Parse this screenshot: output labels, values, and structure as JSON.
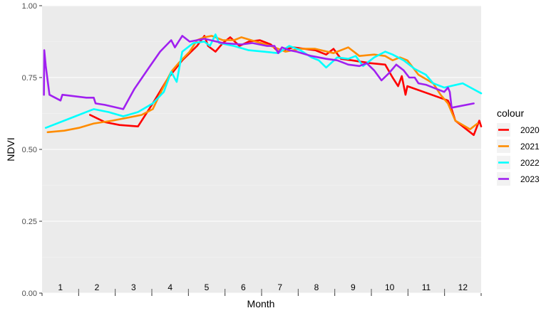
{
  "chart_data": {
    "type": "line",
    "xlabel": "Month",
    "ylabel": "NDVI",
    "legend_title": "colour",
    "legend_position": "right",
    "grid": true,
    "xlim": [
      0.6,
      12.5
    ],
    "ylim": [
      0,
      1
    ],
    "y_ticks": [
      0.0,
      0.25,
      0.5,
      0.75,
      1.0
    ],
    "y_tick_labels": [
      "0.00",
      "0.25",
      "0.50",
      "0.75",
      "1.00"
    ],
    "month_labels": [
      "1",
      "2",
      "3",
      "4",
      "5",
      "6",
      "7",
      "8",
      "9",
      "10",
      "11",
      "12"
    ],
    "series": [
      {
        "name": "2020",
        "color": "#ff0000",
        "points": [
          [
            1.9,
            0.62
          ],
          [
            2.3,
            0.595
          ],
          [
            2.7,
            0.585
          ],
          [
            3.2,
            0.58
          ],
          [
            3.6,
            0.66
          ],
          [
            4.0,
            0.745
          ],
          [
            4.4,
            0.81
          ],
          [
            4.8,
            0.86
          ],
          [
            5.0,
            0.895
          ],
          [
            5.1,
            0.86
          ],
          [
            5.3,
            0.84
          ],
          [
            5.5,
            0.87
          ],
          [
            5.7,
            0.89
          ],
          [
            5.95,
            0.86
          ],
          [
            6.2,
            0.875
          ],
          [
            6.5,
            0.88
          ],
          [
            6.8,
            0.865
          ],
          [
            7.0,
            0.84
          ],
          [
            7.4,
            0.855
          ],
          [
            7.7,
            0.85
          ],
          [
            8.0,
            0.845
          ],
          [
            8.3,
            0.83
          ],
          [
            8.5,
            0.85
          ],
          [
            8.7,
            0.815
          ],
          [
            9.0,
            0.81
          ],
          [
            9.5,
            0.8
          ],
          [
            9.9,
            0.795
          ],
          [
            10.1,
            0.75
          ],
          [
            10.25,
            0.72
          ],
          [
            10.35,
            0.755
          ],
          [
            10.45,
            0.69
          ],
          [
            10.5,
            0.72
          ],
          [
            11.6,
            0.67
          ],
          [
            11.7,
            0.64
          ],
          [
            11.8,
            0.6
          ],
          [
            12.3,
            0.55
          ],
          [
            12.45,
            0.6
          ],
          [
            12.5,
            0.58
          ]
        ]
      },
      {
        "name": "2021",
        "color": "#ff8c00",
        "points": [
          [
            0.75,
            0.56
          ],
          [
            1.2,
            0.565
          ],
          [
            1.6,
            0.575
          ],
          [
            2.0,
            0.59
          ],
          [
            2.5,
            0.6
          ],
          [
            2.9,
            0.61
          ],
          [
            3.3,
            0.62
          ],
          [
            3.6,
            0.64
          ],
          [
            3.9,
            0.72
          ],
          [
            4.1,
            0.77
          ],
          [
            4.3,
            0.8
          ],
          [
            4.6,
            0.84
          ],
          [
            4.8,
            0.88
          ],
          [
            5.0,
            0.89
          ],
          [
            5.2,
            0.895
          ],
          [
            5.5,
            0.88
          ],
          [
            5.8,
            0.88
          ],
          [
            6.0,
            0.89
          ],
          [
            6.4,
            0.875
          ],
          [
            6.8,
            0.86
          ],
          [
            7.2,
            0.84
          ],
          [
            7.6,
            0.85
          ],
          [
            8.0,
            0.85
          ],
          [
            8.5,
            0.835
          ],
          [
            8.9,
            0.855
          ],
          [
            9.2,
            0.825
          ],
          [
            9.6,
            0.83
          ],
          [
            9.9,
            0.825
          ],
          [
            10.1,
            0.81
          ],
          [
            10.3,
            0.82
          ],
          [
            10.5,
            0.81
          ],
          [
            10.8,
            0.76
          ],
          [
            11.2,
            0.73
          ],
          [
            11.4,
            0.69
          ],
          [
            11.6,
            0.66
          ],
          [
            11.8,
            0.6
          ],
          [
            12.2,
            0.57
          ],
          [
            12.4,
            0.59
          ]
        ]
      },
      {
        "name": "2022",
        "color": "#00ffff",
        "points": [
          [
            0.7,
            0.575
          ],
          [
            1.5,
            0.615
          ],
          [
            2.0,
            0.64
          ],
          [
            2.4,
            0.63
          ],
          [
            2.8,
            0.615
          ],
          [
            3.2,
            0.63
          ],
          [
            3.6,
            0.66
          ],
          [
            3.9,
            0.7
          ],
          [
            4.1,
            0.77
          ],
          [
            4.25,
            0.735
          ],
          [
            4.4,
            0.84
          ],
          [
            4.7,
            0.87
          ],
          [
            5.0,
            0.875
          ],
          [
            5.15,
            0.86
          ],
          [
            5.3,
            0.9
          ],
          [
            5.4,
            0.87
          ],
          [
            5.8,
            0.86
          ],
          [
            6.2,
            0.845
          ],
          [
            6.6,
            0.84
          ],
          [
            7.0,
            0.835
          ],
          [
            7.3,
            0.86
          ],
          [
            7.6,
            0.845
          ],
          [
            7.9,
            0.82
          ],
          [
            8.1,
            0.81
          ],
          [
            8.3,
            0.785
          ],
          [
            8.6,
            0.82
          ],
          [
            8.9,
            0.815
          ],
          [
            9.1,
            0.825
          ],
          [
            9.3,
            0.79
          ],
          [
            9.6,
            0.82
          ],
          [
            9.9,
            0.84
          ],
          [
            10.1,
            0.83
          ],
          [
            10.4,
            0.81
          ],
          [
            10.7,
            0.78
          ],
          [
            11.0,
            0.76
          ],
          [
            11.2,
            0.73
          ],
          [
            11.5,
            0.715
          ],
          [
            12.0,
            0.73
          ],
          [
            12.5,
            0.695
          ]
        ]
      },
      {
        "name": "2023",
        "color": "#a020f0",
        "points": [
          [
            0.65,
            0.69
          ],
          [
            0.66,
            0.845
          ],
          [
            0.7,
            0.79
          ],
          [
            0.8,
            0.69
          ],
          [
            1.1,
            0.67
          ],
          [
            1.15,
            0.69
          ],
          [
            1.8,
            0.68
          ],
          [
            2.0,
            0.68
          ],
          [
            2.05,
            0.66
          ],
          [
            2.3,
            0.655
          ],
          [
            2.8,
            0.64
          ],
          [
            3.1,
            0.71
          ],
          [
            3.5,
            0.785
          ],
          [
            3.8,
            0.84
          ],
          [
            4.1,
            0.88
          ],
          [
            4.2,
            0.855
          ],
          [
            4.4,
            0.895
          ],
          [
            4.6,
            0.875
          ],
          [
            4.8,
            0.88
          ],
          [
            5.0,
            0.885
          ],
          [
            5.5,
            0.87
          ],
          [
            6.0,
            0.865
          ],
          [
            6.3,
            0.87
          ],
          [
            6.7,
            0.86
          ],
          [
            6.9,
            0.86
          ],
          [
            7.0,
            0.835
          ],
          [
            7.1,
            0.855
          ],
          [
            7.3,
            0.845
          ],
          [
            7.5,
            0.84
          ],
          [
            7.9,
            0.825
          ],
          [
            8.3,
            0.815
          ],
          [
            8.6,
            0.81
          ],
          [
            8.9,
            0.795
          ],
          [
            9.2,
            0.79
          ],
          [
            9.4,
            0.8
          ],
          [
            9.6,
            0.775
          ],
          [
            9.8,
            0.74
          ],
          [
            10.0,
            0.765
          ],
          [
            10.1,
            0.78
          ],
          [
            10.2,
            0.795
          ],
          [
            10.4,
            0.775
          ],
          [
            10.55,
            0.75
          ],
          [
            10.7,
            0.75
          ],
          [
            10.8,
            0.73
          ],
          [
            11.0,
            0.725
          ],
          [
            11.3,
            0.71
          ],
          [
            11.5,
            0.7
          ],
          [
            11.6,
            0.715
          ],
          [
            11.65,
            0.7
          ],
          [
            11.7,
            0.645
          ],
          [
            12.3,
            0.66
          ]
        ]
      }
    ]
  }
}
